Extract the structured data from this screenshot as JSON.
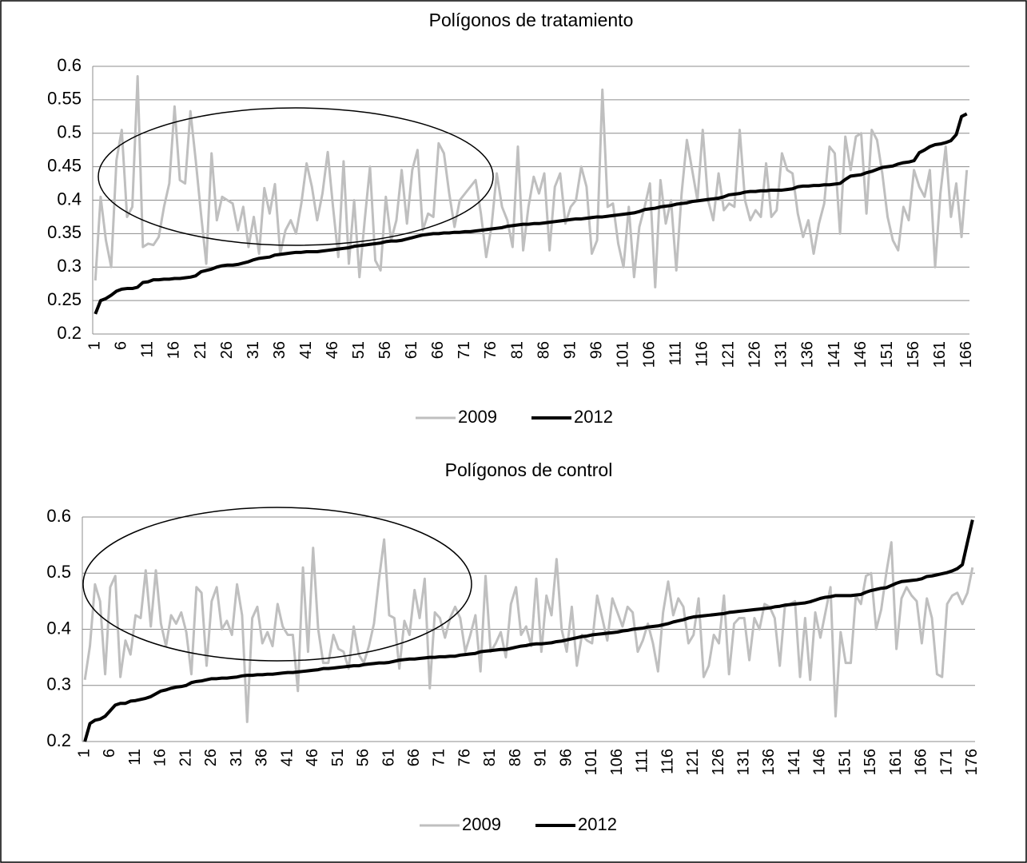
{
  "chart_data": [
    {
      "type": "line",
      "title": "Polígonos de tratamiento",
      "categories": [
        1,
        null,
        null,
        null,
        null,
        6,
        null,
        null,
        null,
        null,
        11,
        null,
        null,
        null,
        null,
        16,
        null,
        null,
        null,
        null,
        21,
        null,
        null,
        null,
        null,
        26,
        null,
        null,
        null,
        null,
        31,
        null,
        null,
        null,
        null,
        36,
        null,
        null,
        null,
        null,
        41,
        null,
        null,
        null,
        null,
        46,
        null,
        null,
        null,
        null,
        51,
        null,
        null,
        null,
        null,
        56,
        null,
        null,
        null,
        null,
        61,
        null,
        null,
        null,
        null,
        66,
        null,
        null,
        null,
        null,
        71,
        null,
        null,
        null,
        null,
        76,
        null,
        null,
        null,
        null,
        81,
        null,
        null,
        null,
        null,
        86,
        null,
        null,
        null,
        null,
        91,
        null,
        null,
        null,
        null,
        96,
        null,
        null,
        null,
        null,
        101,
        null,
        null,
        null,
        null,
        106,
        null,
        null,
        null,
        null,
        111,
        null,
        null,
        null,
        null,
        116,
        null,
        null,
        null,
        null,
        121,
        null,
        null,
        null,
        null,
        126,
        null,
        null,
        null,
        null,
        131,
        null,
        null,
        null,
        null,
        136,
        null,
        null,
        null,
        null,
        141,
        null,
        null,
        null,
        null,
        146,
        null,
        null,
        null,
        null,
        151,
        null,
        null,
        null,
        null,
        156,
        null,
        null,
        null,
        null,
        161,
        null,
        null,
        null,
        null,
        166
      ],
      "series": [
        {
          "name": "2009",
          "color": "#bfbfbf",
          "values": [
            0.28,
            0.405,
            0.34,
            0.3,
            0.46,
            0.505,
            0.375,
            0.39,
            0.585,
            0.33,
            0.335,
            0.333,
            0.345,
            0.39,
            0.425,
            0.54,
            0.43,
            0.425,
            0.533,
            0.46,
            0.38,
            0.305,
            0.47,
            0.37,
            0.405,
            0.4,
            0.395,
            0.355,
            0.39,
            0.33,
            0.375,
            0.32,
            0.418,
            0.38,
            0.424,
            0.32,
            0.355,
            0.37,
            0.35,
            0.395,
            0.455,
            0.42,
            0.37,
            0.41,
            0.472,
            0.39,
            0.315,
            0.458,
            0.305,
            0.4,
            0.285,
            0.37,
            0.45,
            0.31,
            0.295,
            0.405,
            0.34,
            0.37,
            0.445,
            0.365,
            0.445,
            0.475,
            0.355,
            0.38,
            0.375,
            0.485,
            0.47,
            0.41,
            0.36,
            0.4,
            0.41,
            0.42,
            0.43,
            0.38,
            0.315,
            0.36,
            0.44,
            0.39,
            0.37,
            0.33,
            0.48,
            0.325,
            0.39,
            0.435,
            0.41,
            0.44,
            0.325,
            0.42,
            0.44,
            0.365,
            0.39,
            0.4,
            0.45,
            0.42,
            0.32,
            0.34,
            0.565,
            0.39,
            0.395,
            0.335,
            0.3,
            0.39,
            0.285,
            0.36,
            0.39,
            0.425,
            0.27,
            0.43,
            0.365,
            0.4,
            0.295,
            0.41,
            0.49,
            0.445,
            0.4,
            0.505,
            0.4,
            0.37,
            0.44,
            0.385,
            0.395,
            0.39,
            0.505,
            0.4,
            0.37,
            0.385,
            0.375,
            0.455,
            0.375,
            0.385,
            0.47,
            0.445,
            0.44,
            0.38,
            0.345,
            0.37,
            0.32,
            0.365,
            0.395,
            0.48,
            0.47,
            0.35,
            0.495,
            0.445,
            0.495,
            0.5,
            0.38,
            0.505,
            0.49,
            0.44,
            0.375,
            0.34,
            0.325,
            0.39,
            0.37,
            0.445,
            0.42,
            0.405,
            0.445,
            0.3,
            0.41,
            0.48,
            0.375,
            0.425,
            0.345,
            0.445
          ]
        },
        {
          "name": "2012",
          "color": "#000000",
          "values": [
            0.23,
            0.25,
            0.253,
            0.258,
            0.264,
            0.267,
            0.268,
            0.268,
            0.27,
            0.277,
            0.278,
            0.281,
            0.281,
            0.282,
            0.282,
            0.283,
            0.283,
            0.284,
            0.285,
            0.287,
            0.293,
            0.295,
            0.297,
            0.3,
            0.302,
            0.303,
            0.303,
            0.304,
            0.306,
            0.308,
            0.311,
            0.313,
            0.314,
            0.315,
            0.318,
            0.319,
            0.32,
            0.321,
            0.322,
            0.322,
            0.323,
            0.323,
            0.323,
            0.324,
            0.325,
            0.326,
            0.327,
            0.328,
            0.329,
            0.331,
            0.332,
            0.333,
            0.334,
            0.335,
            0.336,
            0.338,
            0.339,
            0.339,
            0.34,
            0.342,
            0.344,
            0.346,
            0.348,
            0.349,
            0.35,
            0.35,
            0.351,
            0.351,
            0.352,
            0.352,
            0.353,
            0.353,
            0.354,
            0.355,
            0.356,
            0.357,
            0.358,
            0.359,
            0.361,
            0.362,
            0.363,
            0.364,
            0.364,
            0.365,
            0.365,
            0.366,
            0.367,
            0.368,
            0.369,
            0.37,
            0.371,
            0.372,
            0.372,
            0.373,
            0.374,
            0.375,
            0.375,
            0.376,
            0.377,
            0.378,
            0.379,
            0.38,
            0.381,
            0.383,
            0.386,
            0.387,
            0.388,
            0.39,
            0.391,
            0.392,
            0.394,
            0.395,
            0.396,
            0.398,
            0.399,
            0.4,
            0.401,
            0.402,
            0.403,
            0.405,
            0.408,
            0.409,
            0.41,
            0.412,
            0.413,
            0.413,
            0.414,
            0.414,
            0.415,
            0.415,
            0.415,
            0.416,
            0.417,
            0.42,
            0.421,
            0.421,
            0.422,
            0.422,
            0.423,
            0.423,
            0.424,
            0.425,
            0.431,
            0.436,
            0.437,
            0.438,
            0.441,
            0.443,
            0.446,
            0.449,
            0.45,
            0.451,
            0.454,
            0.456,
            0.457,
            0.459,
            0.471,
            0.475,
            0.48,
            0.483,
            0.484,
            0.486,
            0.489,
            0.498,
            0.525,
            0.529
          ]
        }
      ],
      "ylim": [
        0.2,
        0.6
      ],
      "yticks": [
        0.2,
        0.25,
        0.3,
        0.35,
        0.4,
        0.45,
        0.5,
        0.55,
        0.6
      ],
      "grid": true,
      "legend": "bottom"
    },
    {
      "type": "line",
      "title": "Polígonos de control",
      "categories": [
        1,
        null,
        null,
        null,
        null,
        6,
        null,
        null,
        null,
        null,
        11,
        null,
        null,
        null,
        null,
        16,
        null,
        null,
        null,
        null,
        21,
        null,
        null,
        null,
        null,
        26,
        null,
        null,
        null,
        null,
        31,
        null,
        null,
        null,
        null,
        36,
        null,
        null,
        null,
        null,
        41,
        null,
        null,
        null,
        null,
        46,
        null,
        null,
        null,
        null,
        51,
        null,
        null,
        null,
        null,
        56,
        null,
        null,
        null,
        null,
        61,
        null,
        null,
        null,
        null,
        66,
        null,
        null,
        null,
        null,
        71,
        null,
        null,
        null,
        null,
        76,
        null,
        null,
        null,
        null,
        81,
        null,
        null,
        null,
        null,
        86,
        null,
        null,
        null,
        null,
        91,
        null,
        null,
        null,
        null,
        96,
        null,
        null,
        null,
        null,
        101,
        null,
        null,
        null,
        null,
        106,
        null,
        null,
        null,
        null,
        111,
        null,
        null,
        null,
        null,
        116,
        null,
        null,
        null,
        null,
        121,
        null,
        null,
        null,
        null,
        126,
        null,
        null,
        null,
        null,
        131,
        null,
        null,
        null,
        null,
        136,
        null,
        null,
        null,
        null,
        141,
        null,
        null,
        null,
        null,
        146,
        null,
        null,
        null,
        null,
        151,
        null,
        null,
        null,
        null,
        156,
        null,
        null,
        null,
        null,
        161,
        null,
        null,
        null,
        null,
        166,
        null,
        null,
        null,
        null,
        171,
        null,
        null,
        null,
        null,
        176
      ],
      "series": [
        {
          "name": "2009",
          "color": "#bfbfbf",
          "values": [
            0.31,
            0.37,
            0.48,
            0.45,
            0.32,
            0.475,
            0.495,
            0.315,
            0.38,
            0.355,
            0.425,
            0.42,
            0.505,
            0.405,
            0.505,
            0.41,
            0.37,
            0.425,
            0.41,
            0.43,
            0.395,
            0.32,
            0.475,
            0.465,
            0.335,
            0.45,
            0.475,
            0.4,
            0.415,
            0.39,
            0.48,
            0.425,
            0.235,
            0.42,
            0.44,
            0.375,
            0.395,
            0.37,
            0.445,
            0.405,
            0.39,
            0.39,
            0.29,
            0.51,
            0.36,
            0.545,
            0.4,
            0.34,
            0.34,
            0.39,
            0.365,
            0.36,
            0.33,
            0.405,
            0.355,
            0.34,
            0.37,
            0.41,
            0.49,
            0.56,
            0.425,
            0.42,
            0.33,
            0.415,
            0.39,
            0.47,
            0.42,
            0.49,
            0.295,
            0.43,
            0.42,
            0.385,
            0.42,
            0.44,
            0.42,
            0.36,
            0.39,
            0.425,
            0.325,
            0.495,
            0.36,
            0.375,
            0.395,
            0.35,
            0.445,
            0.475,
            0.39,
            0.405,
            0.37,
            0.49,
            0.36,
            0.46,
            0.425,
            0.525,
            0.4,
            0.36,
            0.44,
            0.335,
            0.39,
            0.38,
            0.375,
            0.46,
            0.42,
            0.38,
            0.455,
            0.43,
            0.405,
            0.44,
            0.43,
            0.36,
            0.38,
            0.41,
            0.375,
            0.325,
            0.43,
            0.485,
            0.425,
            0.455,
            0.44,
            0.375,
            0.39,
            0.455,
            0.315,
            0.335,
            0.39,
            0.375,
            0.46,
            0.32,
            0.41,
            0.42,
            0.42,
            0.345,
            0.42,
            0.4,
            0.445,
            0.44,
            0.42,
            0.335,
            0.44,
            0.445,
            0.45,
            0.315,
            0.42,
            0.31,
            0.43,
            0.385,
            0.43,
            0.475,
            0.245,
            0.395,
            0.34,
            0.34,
            0.46,
            0.445,
            0.495,
            0.5,
            0.4,
            0.435,
            0.5,
            0.555,
            0.365,
            0.455,
            0.475,
            0.46,
            0.45,
            0.375,
            0.455,
            0.42,
            0.32,
            0.315,
            0.445,
            0.46,
            0.465,
            0.445,
            0.465,
            0.51
          ]
        },
        {
          "name": "2012",
          "color": "#000000",
          "values": [
            0.2,
            0.232,
            0.238,
            0.24,
            0.245,
            0.255,
            0.265,
            0.268,
            0.268,
            0.272,
            0.273,
            0.275,
            0.277,
            0.28,
            0.285,
            0.29,
            0.292,
            0.295,
            0.297,
            0.298,
            0.3,
            0.305,
            0.307,
            0.308,
            0.31,
            0.312,
            0.312,
            0.313,
            0.313,
            0.314,
            0.315,
            0.317,
            0.318,
            0.318,
            0.319,
            0.319,
            0.32,
            0.32,
            0.321,
            0.322,
            0.323,
            0.323,
            0.324,
            0.325,
            0.326,
            0.327,
            0.328,
            0.33,
            0.33,
            0.331,
            0.332,
            0.333,
            0.334,
            0.335,
            0.335,
            0.337,
            0.338,
            0.339,
            0.34,
            0.34,
            0.341,
            0.343,
            0.345,
            0.346,
            0.347,
            0.347,
            0.348,
            0.349,
            0.35,
            0.35,
            0.351,
            0.351,
            0.352,
            0.352,
            0.354,
            0.355,
            0.356,
            0.357,
            0.36,
            0.361,
            0.362,
            0.363,
            0.364,
            0.364,
            0.366,
            0.368,
            0.37,
            0.371,
            0.373,
            0.374,
            0.374,
            0.375,
            0.376,
            0.378,
            0.379,
            0.381,
            0.383,
            0.385,
            0.387,
            0.388,
            0.39,
            0.391,
            0.392,
            0.393,
            0.394,
            0.395,
            0.397,
            0.398,
            0.4,
            0.401,
            0.402,
            0.404,
            0.405,
            0.406,
            0.408,
            0.41,
            0.413,
            0.415,
            0.417,
            0.42,
            0.422,
            0.423,
            0.424,
            0.425,
            0.426,
            0.427,
            0.428,
            0.43,
            0.431,
            0.432,
            0.433,
            0.434,
            0.435,
            0.436,
            0.437,
            0.438,
            0.44,
            0.441,
            0.443,
            0.444,
            0.445,
            0.446,
            0.447,
            0.449,
            0.452,
            0.455,
            0.457,
            0.458,
            0.46,
            0.46,
            0.46,
            0.46,
            0.461,
            0.462,
            0.466,
            0.469,
            0.471,
            0.473,
            0.474,
            0.478,
            0.482,
            0.485,
            0.486,
            0.487,
            0.488,
            0.49,
            0.494,
            0.495,
            0.497,
            0.499,
            0.501,
            0.504,
            0.508,
            0.515,
            0.555,
            0.595
          ]
        }
      ],
      "ylim": [
        0.2,
        0.6
      ],
      "yticks": [
        0.2,
        0.3,
        0.4,
        0.5,
        0.6
      ],
      "grid": true,
      "legend": "bottom"
    }
  ]
}
